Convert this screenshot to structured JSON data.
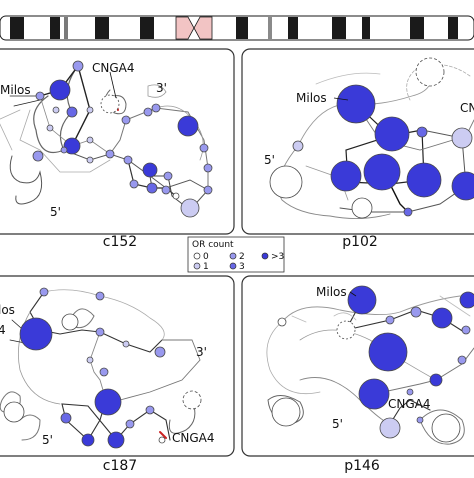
{
  "panels": [
    {
      "id": "c152",
      "caption": "c152",
      "labels": {
        "milos": "Milos",
        "cnga4": "CNGA4",
        "three_prime": "3'",
        "five_prime": "5'"
      }
    },
    {
      "id": "p102",
      "caption": "p102",
      "labels": {
        "milos": "Milos",
        "cnga4": "CN",
        "five_prime": "5'"
      }
    },
    {
      "id": "c187",
      "caption": "c187",
      "labels": {
        "milos": "los",
        "cnga4": "CNGA4",
        "three_prime": "3'",
        "five_prime": "5'",
        "left_fragment": "4"
      }
    },
    {
      "id": "p146",
      "caption": "p146",
      "labels": {
        "milos": "Milos",
        "cnga4": "CNGA4",
        "five_prime": "5'"
      }
    }
  ],
  "legend": {
    "title": "OR count",
    "items": [
      {
        "label": "0",
        "color": "#ffffff"
      },
      {
        "label": "1",
        "color": "#ccccf2"
      },
      {
        "label": "2",
        "color": "#9999ee"
      },
      {
        "label": "3",
        "color": "#6868e6"
      },
      {
        "label": ">3",
        "color": "#3a3ad8"
      }
    ]
  },
  "colors": {
    "node_border": "#4a4a4a",
    "cnga4_marker": "#cc2222",
    "chromosome_band": "#1a1a1a",
    "centromere": "#f2c4c4",
    "panel_border": "#333333"
  }
}
